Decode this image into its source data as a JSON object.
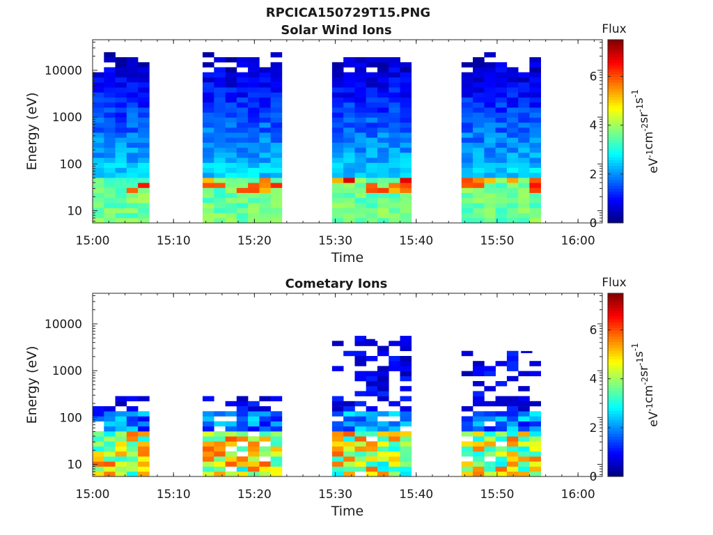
{
  "figure": {
    "title": "RPCICA150729T15.PNG"
  },
  "chart_data": [
    {
      "type": "heatmap",
      "title": "Solar Wind Ions",
      "xlabel": "Time",
      "ylabel": "Energy (eV)",
      "x_ticks": [
        "15:00",
        "15:10",
        "15:20",
        "15:30",
        "15:40",
        "15:50",
        "16:00"
      ],
      "xlim_minutes": [
        0,
        63
      ],
      "y_scale": "log",
      "y_ticks": [
        10,
        100,
        1000,
        10000
      ],
      "ylim": [
        5.5,
        45000
      ],
      "colorbar": {
        "title": "Flux",
        "unit": "eV-1 cm-2 sr-1 s-1",
        "range": [
          0,
          7.5
        ],
        "ticks": [
          0,
          2,
          4,
          6
        ],
        "colormap": "jet"
      },
      "blocks": [
        {
          "t_start": 0,
          "t_end": 7,
          "max_energy": 16000
        },
        {
          "t_start": 13.6,
          "t_end": 23.4,
          "max_energy": 17000
        },
        {
          "t_start": 29.6,
          "t_end": 39.4,
          "max_energy": 15000
        },
        {
          "t_start": 45.6,
          "t_end": 55.4,
          "max_energy": 17000
        }
      ]
    },
    {
      "type": "heatmap",
      "title": "Cometary Ions",
      "xlabel": "Time",
      "ylabel": "Energy (eV)",
      "x_ticks": [
        "15:00",
        "15:10",
        "15:20",
        "15:30",
        "15:40",
        "15:50",
        "16:00"
      ],
      "xlim_minutes": [
        0,
        63
      ],
      "y_scale": "log",
      "y_ticks": [
        10,
        100,
        1000,
        10000
      ],
      "ylim": [
        5.5,
        45000
      ],
      "colorbar": {
        "title": "Flux",
        "unit": "eV-1 cm-2 sr-1 s-1",
        "range": [
          0,
          7.5
        ],
        "ticks": [
          0,
          2,
          4,
          6
        ],
        "colormap": "jet"
      },
      "blocks": [
        {
          "t_start": 0,
          "t_end": 7,
          "max_energy": 300
        },
        {
          "t_start": 13.6,
          "t_end": 23.4,
          "max_energy": 250
        },
        {
          "t_start": 29.6,
          "t_end": 39.4,
          "max_energy": 4500
        },
        {
          "t_start": 45.6,
          "t_end": 55.4,
          "max_energy": 2500
        }
      ]
    }
  ]
}
